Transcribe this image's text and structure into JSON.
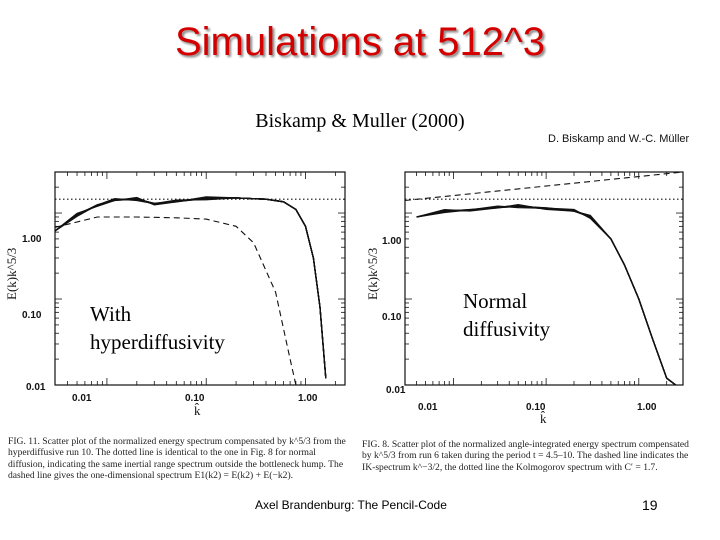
{
  "slide": {
    "title": "Simulations at 512^3",
    "reference": "Biskamp & Muller (2000)",
    "authors": "D. Biskamp and W.-C. Müller",
    "footer": "Axel Brandenburg: The Pencil-Code",
    "page_number": "19"
  },
  "left_plot": {
    "overlay_line1": "With",
    "overlay_line2": "hyperdiffusivity",
    "ylabel": "E(k)k^5/3",
    "xlabel": "k̂",
    "caption": "FIG. 11. Scatter plot of the normalized energy spectrum compensated by k^5/3 from the hyperdiffusive run 10. The dotted line is identical to the one in Fig. 8 for normal diffusion, indicating the same inertial range spectrum outside the bottleneck hump. The dashed line gives the one-dimensional spectrum E1(k2) = E(k2) + E(−k2)."
  },
  "right_plot": {
    "overlay_line1": "Normal",
    "overlay_line2": "diffusivity",
    "ylabel": "E(k)k^5/3",
    "xlabel": "k̂",
    "caption": "FIG. 8. Scatter plot of the normalized angle-integrated energy spectrum compensated by k^5/3 from run 6 taken during the period t = 4.5–10. The dashed line indicates the IK-spectrum k^−3/2, the dotted line the Kolmogorov spectrum with C′ = 1.7."
  },
  "chart_data": [
    {
      "type": "line",
      "x_scale": "log",
      "y_scale": "log",
      "xlim": [
        0.003,
        2.5
      ],
      "ylim": [
        0.01,
        3
      ],
      "x_ticks": [
        "0.01",
        "0.10",
        "1.00"
      ],
      "y_ticks": [
        "1.00",
        "0.10",
        "0.01"
      ],
      "series": [
        {
          "style": "solid",
          "x": [
            0.003,
            0.005,
            0.008,
            0.012,
            0.02,
            0.03,
            0.05,
            0.1,
            0.2,
            0.4,
            0.6,
            0.8,
            1.0,
            1.2,
            1.4,
            1.6
          ],
          "y": [
            0.62,
            0.95,
            1.25,
            1.4,
            1.45,
            1.3,
            1.35,
            1.48,
            1.5,
            1.45,
            1.35,
            1.1,
            0.7,
            0.3,
            0.08,
            0.012
          ]
        },
        {
          "style": "dotted",
          "x": [
            0.003,
            2.5
          ],
          "y": [
            1.45,
            1.45
          ]
        },
        {
          "style": "dashed",
          "x": [
            0.003,
            0.008,
            0.02,
            0.05,
            0.1,
            0.2,
            0.3,
            0.5,
            0.7,
            0.8
          ],
          "y": [
            0.68,
            0.9,
            0.9,
            0.88,
            0.85,
            0.7,
            0.45,
            0.12,
            0.02,
            0.01
          ]
        }
      ]
    },
    {
      "type": "line",
      "x_scale": "log",
      "y_scale": "log",
      "xlim": [
        0.003,
        3
      ],
      "ylim": [
        0.01,
        3
      ],
      "x_ticks": [
        "0.01",
        "0.10",
        "1.00"
      ],
      "y_ticks": [
        "1.00",
        "0.10",
        "0.01"
      ],
      "series": [
        {
          "style": "solid",
          "x": [
            0.004,
            0.008,
            0.015,
            0.03,
            0.05,
            0.1,
            0.2,
            0.3,
            0.5,
            0.7,
            1.0,
            1.4,
            2.0,
            2.5
          ],
          "y": [
            0.9,
            1.05,
            1.1,
            1.15,
            1.2,
            1.15,
            1.05,
            0.9,
            0.5,
            0.25,
            0.1,
            0.035,
            0.012,
            0.01
          ]
        },
        {
          "style": "dotted",
          "x": [
            0.003,
            3
          ],
          "y": [
            1.45,
            1.45
          ]
        },
        {
          "style": "dashed",
          "x": [
            0.003,
            3
          ],
          "y": [
            1.4,
            3.0
          ]
        }
      ]
    }
  ]
}
